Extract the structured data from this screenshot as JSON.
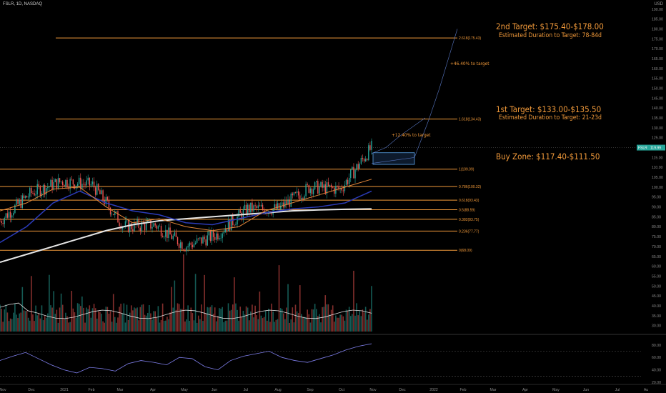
{
  "header": {
    "symbol_line": "FSLR, 1D, NASDAQ",
    "corner_label": "USD"
  },
  "annotations": {
    "target2": "2nd Target: $175.40-$178.00",
    "target2_duration": "Estimated Duration to Target: 78-84d",
    "target2_pct": "+46.40% to target",
    "target1": "1st Target: $133.00-$135.50",
    "target1_duration": "Estimated Duration to Target: 21-23d",
    "target1_pct": "+12.40% to target",
    "buy_zone": "Buy Zone: $117.40-$111.50"
  },
  "colors": {
    "fib": "#f29a3a",
    "up": "#26a69a",
    "down": "#ef5350",
    "ma_fast": "#e0853a",
    "ma_mid": "#2b3bb8",
    "ma_slow": "#e6e6e6",
    "price_tag": "#26a69a",
    "rsi": "#7e7eea",
    "zone": "#5aa0e6"
  },
  "chart_data": {
    "type": "candlestick",
    "symbol": "FSLR",
    "interval": "1D",
    "exchange": "NASDAQ",
    "last_price": 119.99,
    "last_price_label": "119.99",
    "ylim": [
      25,
      190
    ],
    "price_axis_ticks": [
      190,
      185,
      180,
      175,
      170,
      165,
      160,
      155,
      150,
      145,
      140,
      135,
      130,
      125,
      120,
      115,
      110,
      105,
      100,
      95,
      90,
      85,
      80,
      75,
      70,
      65,
      60,
      55,
      50,
      45,
      40,
      35,
      30
    ],
    "rsi_axis_ticks": [
      80,
      60,
      40,
      20
    ],
    "x_tick_labels": [
      "Nov",
      "Dec",
      "2021",
      "Feb",
      "Mar",
      "Apr",
      "May",
      "Jun",
      "Jul",
      "Aug",
      "Sep",
      "Oct",
      "Nov",
      "Dec",
      "2022",
      "Feb",
      "Mar",
      "Apr",
      "May",
      "Jun",
      "Jul",
      "Au"
    ],
    "fib_levels": [
      {
        "label": "2.618(175.43)",
        "value": 175.43
      },
      {
        "label": "1.618(134.43)",
        "value": 134.43
      },
      {
        "label": "1(109.09)",
        "value": 109.09
      },
      {
        "label": "0.786(100.32)",
        "value": 100.32
      },
      {
        "label": "0.618(93.43)",
        "value": 93.43
      },
      {
        "label": "0.5(88.59)",
        "value": 88.59
      },
      {
        "label": "0.382(83.75)",
        "value": 83.75
      },
      {
        "label": "0.236(77.77)",
        "value": 77.77
      },
      {
        "label": "0(68.09)",
        "value": 68.09
      }
    ],
    "buy_zone": {
      "low": 111.5,
      "high": 117.4
    },
    "price_path": [
      {
        "x": "Nov",
        "y": 83
      },
      {
        "x": "Dec",
        "y": 97
      },
      {
        "x": "2021",
        "y": 103
      },
      {
        "x": "Feb",
        "y": 101
      },
      {
        "x": "Mar",
        "y": 80
      },
      {
        "x": "Apr",
        "y": 81
      },
      {
        "x": "May",
        "y": 70
      },
      {
        "x": "Jun",
        "y": 76
      },
      {
        "x": "Jul",
        "y": 89
      },
      {
        "x": "Aug",
        "y": 89
      },
      {
        "x": "Sep",
        "y": 100
      },
      {
        "x": "Oct",
        "y": 99
      },
      {
        "x": "Nov",
        "y": 119.99
      }
    ],
    "ma_fast": [
      88,
      92,
      99,
      100,
      90,
      82,
      84,
      80,
      78,
      80,
      88,
      92,
      96,
      100,
      104
    ],
    "ma_mid": [
      72,
      80,
      92,
      98,
      92,
      88,
      86,
      82,
      81,
      84,
      87,
      89,
      90,
      92,
      98
    ],
    "ma_slow": [
      62,
      66,
      70,
      74,
      78,
      81,
      83,
      84,
      85,
      86,
      87,
      88,
      88.5,
      88.8,
      89
    ],
    "rsi": [
      55,
      62,
      68,
      58,
      48,
      40,
      35,
      44,
      42,
      38,
      50,
      55,
      52,
      48,
      60,
      58,
      45,
      40,
      55,
      62,
      66,
      70,
      60,
      55,
      52,
      58,
      64,
      72,
      78,
      82
    ]
  }
}
